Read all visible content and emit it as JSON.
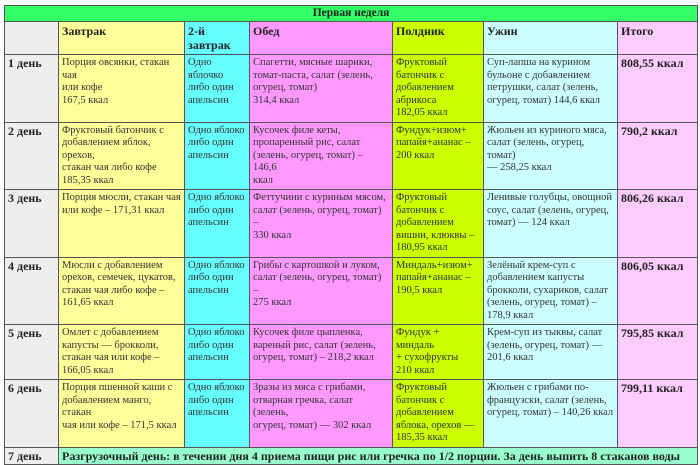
{
  "title": "Первая неделя",
  "headers": [
    "",
    "Завтрак",
    "2-й\nзавтрак",
    "Обед",
    "Полдник",
    "Ужин",
    "Итого"
  ],
  "colors": {
    "title": "#33ff66",
    "day": "#eeeeee",
    "breakfast": "#ffff99",
    "second_breakfast": "#66ffff",
    "lunch": "#ff99ff",
    "snack": "#ccff00",
    "dinner": "#ccffff",
    "total": "#ffccff",
    "day7": "#99ffcc"
  },
  "rows": [
    {
      "day": "1 день",
      "breakfast": "Порция овсянки, стакан чая\nили кофе\n167,5 ккал",
      "second_breakfast": "Одно яблочко\nлибо один\nапельсин",
      "lunch": "Спагетти, мясные шарики,\nтомат-паста, салат (зелень,\nогурец, томат)\n 314,4 ккал",
      "snack": "Фруктовый\nбатончик с\nдобавлением\nабрикоса\n182,05 ккал",
      "dinner": "Суп-лапша на курином\nбульоне с добавлением\nпетрушки, салат (зелень,\nогурец, томат) 144,6 ккал",
      "total": "808,55 ккал"
    },
    {
      "day": "2 день",
      "breakfast": "Фруктовый батончик с\nдобавлением яблок, орехов,\nстакан чая либо кофе\n185,35 ккал",
      "second_breakfast": "Одно яблоко\nлибо один\nапельсин",
      "lunch": "Кусочек филе кеты,\nпропаренный рис, салат\n(зелень, огурец, томат) – 146,6\nккал",
      "snack": "Фундук+изюм+\nпапайя+ананас –\n200 ккал",
      "dinner": "Жюльен из куриного мяса,\nсалат (зелень, огурец, томат)\n— 258,25 ккал",
      "total": "790,2 ккал"
    },
    {
      "day": "3 день",
      "breakfast": "Порция мюсли, стакан чая\nили кофе – 171,31 ккал",
      "second_breakfast": "Одно яблоко\nлибо один\nапельсин",
      "lunch": "Феттучини с куриным мясом,\nсалат (зелень, огурец, томат) –\n330 ккал",
      "snack": "Фруктовый\nбатончик с\nдобавлением\nвишни, клюквы –\n180,95 ккал",
      "dinner": "Ленивые голубцы, овощной\nсоус, салат (зелень, огурец,\nтомат) — 124 ккал",
      "total": "806,26 ккал"
    },
    {
      "day": "4 день",
      "breakfast": "Мюсли с добавлением\nорехов, семечек, цукатов,\nстакан чая либо кофе –\n161,65 ккал",
      "second_breakfast": "Одно яблоко\nлибо один\nапельсин",
      "lunch": "Грибы с картошкой и луком,\nсалат (зелень, огурец, томат) –\n275 ккал",
      "snack": "Миндаль+изюм+\nпапайя+ананас –\n190,5 ккал",
      "dinner": "Зелёный крем-суп с\nдобавлением капусты\nброкколи, сухариков, салат\n(зелень, огурец, томат) –\n178,9 ккал",
      "total": "806,05 ккал"
    },
    {
      "day": "5 день",
      "breakfast": "Омлет с добавлением\nкапусты — брокколи,\nстакан чая или кофе –\n166,05 ккал",
      "second_breakfast": "Одно яблоко\nлибо один\nапельсин",
      "lunch": "Кусочек филе цыпленка,\nвареный рис, салат (зелень,\nогурец, томат) – 218,2 ккал",
      "snack": "Фундук + миндаль\n+ сухофрукты\n210 ккал",
      "dinner": "Крем-суп из тыквы, салат\n(зелень, огурец, томат) —\n201,6 ккал",
      "total": "795,85 ккал"
    },
    {
      "day": "6 день",
      "breakfast": "Порция пшенной каши с\nдобавлением манго, стакан\nчая или кофе – 171,5 ккал",
      "second_breakfast": "Одно яблоко\nлибо один\nапельсин",
      "lunch": "Зразы из мяса с грибами,\nотварная гречка, салат (зелень,\nогурец, томат) — 302 ккал",
      "snack": "Фруктовый\nбатончик с\nдобавлением\nяблока, орехов —\n185,35 ккал",
      "dinner": "Жюльен с грибами по-\nфранцузски, салат (зелень,\nогурец, томат) – 140,26 ккал",
      "total": "799,11 ккал"
    }
  ],
  "day7": {
    "day": "7 день",
    "text": "Разгрузочный день: в течении дня 4 приема пищи рис или гречка по 1/2 порции. За день выпить 8 стаканов воды"
  }
}
